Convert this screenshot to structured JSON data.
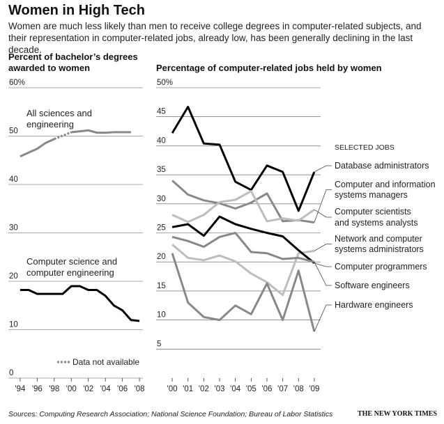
{
  "header": {
    "title": "Women in High Tech",
    "subtitle": "Women are much less likely than men to receive college degrees in computer-related subjects, and their representation in computer-related jobs, already low, has been generally declining in the last decade."
  },
  "footer": {
    "sources": "Sources: Computing Research Association; National Science Foundation; Bureau of Labor Statistics",
    "credit": "THE NEW YORK TIMES"
  },
  "chart_data": [
    {
      "type": "line",
      "title": "Percent of bachelor’s degrees awarded to women",
      "xlabel": "",
      "ylabel": "",
      "ylim": [
        0,
        60
      ],
      "yticks": [
        0,
        10,
        20,
        30,
        40,
        50,
        60
      ],
      "ytick_labels": [
        "0",
        "10",
        "20",
        "30",
        "40",
        "50",
        "60%"
      ],
      "xlim": [
        1993.6,
        2008.4
      ],
      "xticks": [
        1994,
        1996,
        1998,
        2000,
        2002,
        2004,
        2006,
        2008
      ],
      "xtick_labels": [
        "'94",
        "'96",
        "'98",
        "'00",
        "'02",
        "'04",
        "'06",
        "'08"
      ],
      "grid": "horizontal",
      "legend_label": "Data not available",
      "legend_placement": "bottom-right",
      "series": [
        {
          "name": "All sciences and engineering",
          "color": "#888888",
          "x": [
            1994,
            1995,
            1996,
            1997,
            1998,
            1999,
            2000,
            2001,
            2002,
            2003,
            2004,
            2005,
            2006,
            2007
          ],
          "y": [
            45.8,
            46.6,
            47.4,
            48.6,
            49.4,
            null,
            50.8,
            51.0,
            51.2,
            50.7,
            50.7,
            50.8,
            50.8,
            50.8
          ],
          "gap_from": 1998,
          "gap_to": 2000
        },
        {
          "name": "Computer science and computer engineering",
          "color": "#000000",
          "x": [
            1994,
            1995,
            1996,
            1997,
            1998,
            1999,
            2000,
            2001,
            2002,
            2003,
            2004,
            2005,
            2006,
            2007,
            2008
          ],
          "y": [
            18.2,
            18.2,
            17.4,
            17.4,
            17.4,
            17.4,
            19.0,
            19.0,
            18.2,
            18.2,
            17.0,
            15.0,
            14.0,
            12.0,
            11.8
          ]
        }
      ]
    },
    {
      "type": "line",
      "title": "Percentage of computer-related jobs held by women",
      "xlabel": "",
      "ylabel": "",
      "ylim": [
        0,
        50
      ],
      "yticks": [
        5,
        10,
        15,
        20,
        25,
        30,
        35,
        40,
        45,
        50
      ],
      "ytick_labels": [
        "5",
        "10",
        "15",
        "20",
        "25",
        "30",
        "35",
        "40",
        "45",
        "50%"
      ],
      "xlim": [
        1999.6,
        2009.4
      ],
      "xticks": [
        2000,
        2001,
        2002,
        2003,
        2004,
        2005,
        2006,
        2007,
        2008,
        2009
      ],
      "xtick_labels": [
        "'00",
        "'01",
        "'02",
        "'03",
        "'04",
        "'05",
        "'06",
        "'07",
        "'08",
        "'09"
      ],
      "grid": "horizontal",
      "legend_title": "SELECTED JOBS",
      "legend_placement": "right",
      "series": [
        {
          "name": "Database administrators",
          "color": "#000000",
          "x": [
            2000,
            2001,
            2002,
            2003,
            2004,
            2005,
            2006,
            2007,
            2008,
            2009
          ],
          "y": [
            42.2,
            46.7,
            40.4,
            40.2,
            33.8,
            32.4,
            36.6,
            35.5,
            28.8,
            35.5
          ]
        },
        {
          "name": "Computer and information systems managers",
          "color": "#888888",
          "x": [
            2000,
            2001,
            2002,
            2003,
            2004,
            2005,
            2006,
            2007,
            2008,
            2009
          ],
          "y": [
            34.0,
            31.6,
            30.6,
            30.1,
            29.2,
            30.2,
            31.8,
            27.0,
            27.2,
            26.8
          ]
        },
        {
          "name": "Computer scientists and systems analysts",
          "color": "#bdbdbd",
          "x": [
            2000,
            2001,
            2002,
            2003,
            2004,
            2005,
            2006,
            2007,
            2008,
            2009
          ],
          "y": [
            28.1,
            26.9,
            28.1,
            30.3,
            30.7,
            32.2,
            27.0,
            27.5,
            27.1,
            29.0
          ]
        },
        {
          "name": "Network and computer systems administrators",
          "color": "#bdbdbd",
          "x": [
            2000,
            2001,
            2002,
            2003,
            2004,
            2005,
            2006,
            2007,
            2008,
            2009
          ],
          "y": [
            23.0,
            20.7,
            20.3,
            21.1,
            20.1,
            18.0,
            16.5,
            14.3,
            21.5,
            21.9
          ]
        },
        {
          "name": "Computer programmers",
          "color": "#000000",
          "x": [
            2000,
            2001,
            2002,
            2003,
            2004,
            2005,
            2006,
            2007,
            2008,
            2009
          ],
          "y": [
            26.0,
            26.5,
            24.5,
            27.8,
            26.5,
            25.7,
            25.0,
            24.4,
            22.0,
            19.8
          ]
        },
        {
          "name": "Software engineers",
          "color": "#888888",
          "x": [
            2000,
            2001,
            2002,
            2003,
            2004,
            2005,
            2006,
            2007,
            2008,
            2009
          ],
          "y": [
            24.3,
            23.6,
            22.6,
            24.3,
            25.0,
            21.7,
            21.5,
            20.5,
            20.7,
            20.0
          ]
        },
        {
          "name": "Hardware engineers",
          "color": "#888888",
          "x": [
            2000,
            2001,
            2002,
            2003,
            2004,
            2005,
            2006,
            2007,
            2008,
            2009
          ],
          "y": [
            21.5,
            13.0,
            10.5,
            10.0,
            12.5,
            11.0,
            16.3,
            10.0,
            18.5,
            8.0
          ]
        }
      ]
    }
  ]
}
